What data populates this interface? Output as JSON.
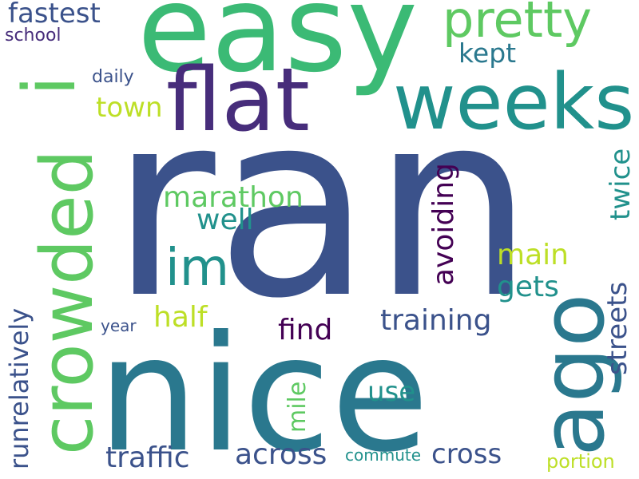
{
  "words": {
    "ran": "ran",
    "nice": "nice",
    "easy": "easy",
    "crowded": "crowded",
    "i": "i",
    "weeks": "weeks",
    "flat": "flat",
    "ago": "ago",
    "pretty": "pretty",
    "im": "im",
    "fastest": "fastest",
    "kept": "kept",
    "school": "school",
    "daily": "daily",
    "town": "town",
    "marathon": "marathon",
    "well": "well",
    "avoiding": "avoiding",
    "twice": "twice",
    "main": "main",
    "gets": "gets",
    "streets": "streets",
    "runrelatively": "runrelatively",
    "half": "half",
    "year": "year",
    "find": "find",
    "training": "training",
    "mile": "mile",
    "use": "use",
    "traffic": "traffic",
    "across": "across",
    "commute": "commute",
    "cross": "cross",
    "portion": "portion"
  }
}
